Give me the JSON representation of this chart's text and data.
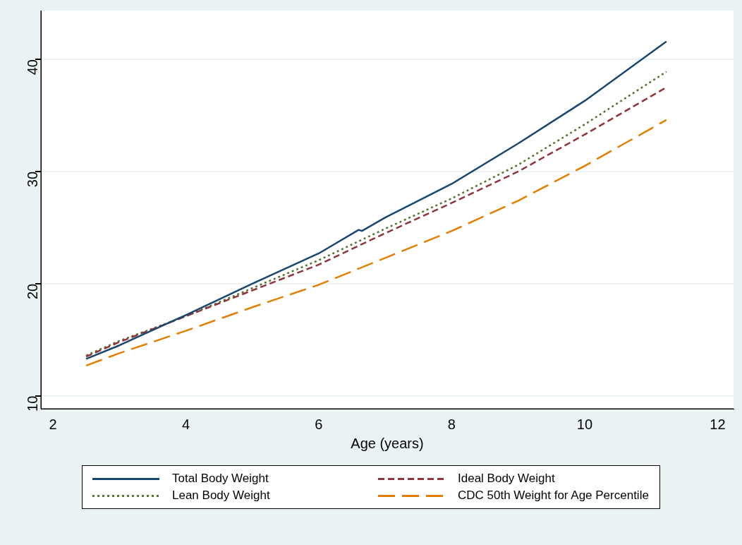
{
  "chart_data": {
    "type": "line",
    "xlabel": "Age (years)",
    "xlim": [
      1.82,
      12.24
    ],
    "xticks": [
      2,
      4,
      6,
      8,
      10,
      12
    ],
    "ylim": [
      8.85,
      44.35
    ],
    "yticks": [
      10,
      20,
      30,
      40
    ],
    "grid": "y",
    "legend": "bottom",
    "marker": "none",
    "series": [
      {
        "name": "Total Body Weight",
        "color": "#1a476f",
        "line_style": "solid",
        "x": [
          2.5,
          3,
          4,
          5,
          6,
          6.6,
          6.65,
          7,
          8,
          9,
          10,
          11.23
        ],
        "values": [
          13.3,
          14.5,
          17.2,
          20.0,
          22.7,
          24.8,
          24.7,
          25.9,
          28.9,
          32.5,
          36.3,
          41.6
        ]
      },
      {
        "name": "Ideal Body Weight",
        "color": "#90353b",
        "line_style": "dashed",
        "x": [
          2.5,
          3,
          4,
          5,
          6,
          7,
          8,
          9,
          10,
          11.23
        ],
        "values": [
          13.5,
          14.8,
          17.1,
          19.4,
          21.7,
          24.5,
          27.2,
          30.0,
          33.3,
          37.5
        ]
      },
      {
        "name": "Lean Body Weight",
        "color": "#55752f",
        "line_style": "dotted",
        "x": [
          2.5,
          3,
          4,
          5,
          6,
          7,
          8,
          9,
          10,
          11.23
        ],
        "values": [
          13.6,
          14.9,
          17.1,
          19.6,
          22.1,
          24.9,
          27.6,
          30.6,
          34.2,
          38.9
        ]
      },
      {
        "name": "CDC 50th Weight for Age Percentile",
        "color": "#e37e00",
        "line_style": "longdash",
        "x": [
          2.5,
          3,
          4,
          5,
          6,
          7,
          8,
          9,
          10,
          11.23
        ],
        "values": [
          12.7,
          13.8,
          15.8,
          17.9,
          19.9,
          22.3,
          24.7,
          27.4,
          30.5,
          34.6
        ]
      }
    ]
  }
}
